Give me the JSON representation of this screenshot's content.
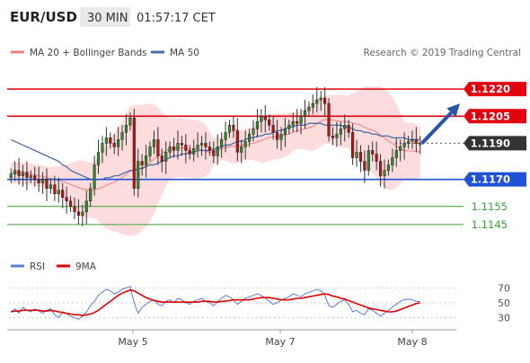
{
  "header": {
    "symbol": "EUR/USD",
    "timeframe": "30 MIN",
    "time": "01:57:17 CET"
  },
  "legend": {
    "bollinger": "MA 20 + Bollinger Bands",
    "ma50": "MA 50",
    "credit": "Research © 2019 Trading Central"
  },
  "colors": {
    "resistance": "#e3000f",
    "pivot": "#1f52d6",
    "support": "#3aa13a",
    "last": "#333333",
    "ma50": "#4a6ea9",
    "bollinger_fill": "#fbd0d0",
    "bollinger_line": "#f08080",
    "candle_up": "#2f8f2f",
    "candle_down": "#c01010",
    "arrow": "#2855a6",
    "rsi": "#5b7fd1",
    "rsi_ma": "#e00000"
  },
  "chart_data": [
    {
      "type": "candlestick",
      "ylim": [
        1.1135,
        1.1232
      ],
      "levels": [
        {
          "label": "1.1220",
          "value": 1.122,
          "kind": "resistance"
        },
        {
          "label": "1.1205",
          "value": 1.1205,
          "kind": "resistance"
        },
        {
          "label": "1.1190",
          "value": 1.119,
          "kind": "last"
        },
        {
          "label": "1.1170",
          "value": 1.117,
          "kind": "pivot"
        },
        {
          "label": "1.1155",
          "value": 1.1155,
          "kind": "support"
        },
        {
          "label": "1.1145",
          "value": 1.1145,
          "kind": "support"
        }
      ],
      "x_ticks": [
        "May 5",
        "May 7",
        "May 8"
      ],
      "closes": [
        1.1173,
        1.1175,
        1.1172,
        1.1174,
        1.1171,
        1.1172,
        1.117,
        1.1168,
        1.117,
        1.1165,
        1.1167,
        1.1162,
        1.1164,
        1.116,
        1.1158,
        1.1155,
        1.1152,
        1.115,
        1.1152,
        1.1158,
        1.1165,
        1.1178,
        1.1185,
        1.119,
        1.1193,
        1.119,
        1.1188,
        1.1192,
        1.1196,
        1.12,
        1.1204,
        1.1165,
        1.118,
        1.1178,
        1.1183,
        1.1188,
        1.1192,
        1.1183,
        1.118,
        1.1185,
        1.1188,
        1.1186,
        1.119,
        1.1189,
        1.1186,
        1.1184,
        1.1187,
        1.1189,
        1.119,
        1.1188,
        1.1186,
        1.1183,
        1.1188,
        1.1192,
        1.1196,
        1.12,
        1.1197,
        1.1185,
        1.1188,
        1.1191,
        1.1195,
        1.1198,
        1.1202,
        1.1205,
        1.1203,
        1.12,
        1.1196,
        1.1192,
        1.1195,
        1.1198,
        1.12,
        1.1202,
        1.1201,
        1.1205,
        1.1208,
        1.121,
        1.1212,
        1.1214,
        1.1215,
        1.1212,
        1.1194,
        1.1193,
        1.1195,
        1.1198,
        1.12,
        1.1196,
        1.1182,
        1.1185,
        1.118,
        1.1175,
        1.1186,
        1.1184,
        1.118,
        1.1172,
        1.1175,
        1.1178,
        1.1182,
        1.1186,
        1.1188,
        1.119,
        1.1191,
        1.1192,
        1.119,
        1.119
      ],
      "ma50": [
        1.1192,
        1.1191,
        1.119,
        1.1189,
        1.1188,
        1.1187,
        1.1186,
        1.1185,
        1.1184,
        1.1183,
        1.1182,
        1.1181,
        1.118,
        1.1178,
        1.1177,
        1.1175,
        1.1174,
        1.1173,
        1.1172,
        1.1171,
        1.117,
        1.117,
        1.117,
        1.117,
        1.1171,
        1.1171,
        1.1172,
        1.1172,
        1.1173,
        1.1174,
        1.1175,
        1.1175,
        1.1176,
        1.1176,
        1.1177,
        1.1178,
        1.1178,
        1.1179,
        1.118,
        1.1181,
        1.1182,
        1.1183,
        1.1183,
        1.1184,
        1.1184,
        1.1185,
        1.1185,
        1.1186,
        1.1186,
        1.1186,
        1.1186,
        1.1187,
        1.1187,
        1.1188,
        1.1189,
        1.1189,
        1.119,
        1.1191,
        1.1191,
        1.1192,
        1.1193,
        1.1193,
        1.1194,
        1.1194,
        1.1195,
        1.1195,
        1.1196,
        1.1197,
        1.1197,
        1.1198,
        1.1199,
        1.1199,
        1.12,
        1.12,
        1.12,
        1.1201,
        1.1201,
        1.1201,
        1.1201,
        1.12,
        1.12,
        1.12,
        1.12,
        1.12,
        1.1199,
        1.1199,
        1.1198,
        1.1197,
        1.1197,
        1.1196,
        1.1196,
        1.1195,
        1.1195,
        1.1194,
        1.1194,
        1.1194,
        1.1193,
        1.1193,
        1.1193,
        1.1193,
        1.1192,
        1.1192,
        1.1192,
        1.1192
      ],
      "forecast": [
        1.119,
        1.1212
      ],
      "last_value": 1.119
    },
    {
      "type": "line",
      "title": "RSI",
      "ylim": [
        20,
        80
      ],
      "y_ticks": [
        30,
        50,
        70
      ],
      "series": [
        {
          "name": "RSI",
          "values": [
            38,
            42,
            36,
            44,
            40,
            38,
            42,
            39,
            36,
            40,
            42,
            34,
            30,
            38,
            36,
            32,
            30,
            28,
            32,
            38,
            46,
            52,
            60,
            64,
            68,
            66,
            62,
            64,
            68,
            70,
            72,
            50,
            36,
            44,
            48,
            52,
            54,
            48,
            46,
            52,
            54,
            50,
            56,
            54,
            50,
            48,
            52,
            54,
            56,
            52,
            50,
            46,
            52,
            56,
            60,
            58,
            54,
            48,
            52,
            56,
            58,
            60,
            62,
            60,
            56,
            52,
            48,
            50,
            54,
            56,
            58,
            62,
            60,
            58,
            62,
            64,
            66,
            68,
            66,
            60,
            46,
            44,
            48,
            52,
            54,
            48,
            38,
            40,
            36,
            34,
            42,
            40,
            36,
            32,
            36,
            40,
            44,
            48,
            52,
            54,
            55,
            54,
            52,
            52
          ]
        },
        {
          "name": "9MA",
          "values": [
            38,
            39,
            39,
            40,
            40,
            40,
            40,
            40,
            39,
            39,
            40,
            39,
            38,
            37,
            36,
            35,
            34,
            34,
            33,
            34,
            35,
            37,
            40,
            44,
            48,
            52,
            56,
            60,
            63,
            65,
            67,
            66,
            63,
            60,
            57,
            55,
            53,
            52,
            51,
            51,
            51,
            51,
            51,
            51,
            51,
            51,
            51,
            51,
            52,
            52,
            52,
            51,
            51,
            52,
            52,
            53,
            54,
            54,
            54,
            54,
            54,
            55,
            56,
            57,
            57,
            57,
            56,
            55,
            54,
            54,
            54,
            55,
            56,
            56,
            57,
            58,
            59,
            60,
            61,
            62,
            61,
            59,
            58,
            56,
            55,
            53,
            51,
            49,
            47,
            45,
            43,
            42,
            41,
            40,
            39,
            38,
            38,
            39,
            41,
            43,
            45,
            47,
            49,
            50
          ]
        }
      ]
    }
  ]
}
